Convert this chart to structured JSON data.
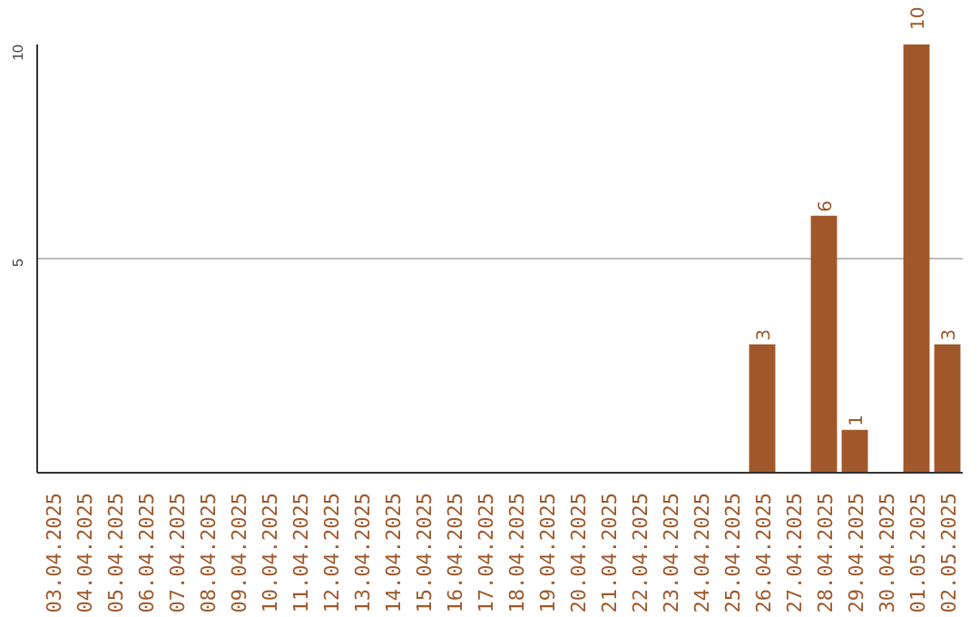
{
  "chart_data": {
    "type": "bar",
    "categories": [
      "03.04.2025",
      "04.04.2025",
      "05.04.2025",
      "06.04.2025",
      "07.04.2025",
      "08.04.2025",
      "09.04.2025",
      "10.04.2025",
      "11.04.2025",
      "12.04.2025",
      "13.04.2025",
      "14.04.2025",
      "15.04.2025",
      "16.04.2025",
      "17.04.2025",
      "18.04.2025",
      "19.04.2025",
      "20.04.2025",
      "21.04.2025",
      "22.04.2025",
      "23.04.2025",
      "24.04.2025",
      "25.04.2025",
      "26.04.2025",
      "27.04.2025",
      "28.04.2025",
      "29.04.2025",
      "30.04.2025",
      "01.05.2025",
      "02.05.2025"
    ],
    "values": [
      0,
      0,
      0,
      0,
      0,
      0,
      0,
      0,
      0,
      0,
      0,
      0,
      0,
      0,
      0,
      0,
      0,
      0,
      0,
      0,
      0,
      0,
      0,
      3,
      0,
      6,
      1,
      0,
      10,
      3
    ],
    "value_labels": [
      null,
      null,
      null,
      null,
      null,
      null,
      null,
      null,
      null,
      null,
      null,
      null,
      null,
      null,
      null,
      null,
      null,
      null,
      null,
      null,
      null,
      null,
      null,
      "3",
      null,
      "6",
      "1",
      null,
      "10",
      "3"
    ],
    "color": "#a0582a",
    "ylim": [
      0,
      10
    ],
    "yticks": [
      5,
      10
    ],
    "grid": "y"
  }
}
